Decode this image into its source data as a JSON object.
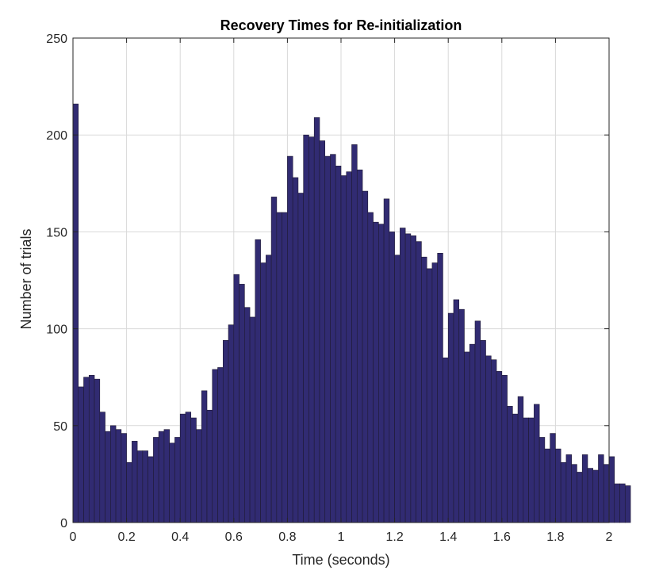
{
  "chart_data": {
    "type": "bar",
    "title": "Recovery Times for Re-initialization",
    "xlabel": "Time (seconds)",
    "ylabel": "Number of trials",
    "xlim": [
      0,
      2
    ],
    "ylim": [
      0,
      250
    ],
    "xticks": [
      "0",
      "0.2",
      "0.4",
      "0.6",
      "0.8",
      "1",
      "1.2",
      "1.4",
      "1.6",
      "1.8",
      "2"
    ],
    "yticks": [
      "0",
      "50",
      "100",
      "150",
      "200",
      "250"
    ],
    "grid": true,
    "bar_color": "#312b72",
    "bin_width": 0.02,
    "values": [
      216,
      70,
      75,
      76,
      74,
      57,
      47,
      50,
      48,
      46,
      31,
      42,
      37,
      37,
      34,
      44,
      47,
      48,
      41,
      44,
      56,
      57,
      54,
      48,
      68,
      58,
      79,
      80,
      94,
      102,
      128,
      123,
      111,
      106,
      146,
      134,
      138,
      168,
      160,
      160,
      189,
      178,
      170,
      200,
      199,
      209,
      197,
      189,
      190,
      184,
      179,
      181,
      195,
      182,
      171,
      160,
      155,
      154,
      167,
      150,
      138,
      152,
      149,
      148,
      145,
      137,
      131,
      134,
      139,
      85,
      108,
      115,
      110,
      88,
      92,
      104,
      94,
      86,
      84,
      78,
      76,
      60,
      56,
      65,
      54,
      54,
      61,
      44,
      38,
      46,
      38,
      31,
      35,
      30,
      26,
      35,
      28,
      27,
      35,
      30,
      34,
      20,
      20,
      19
    ]
  }
}
